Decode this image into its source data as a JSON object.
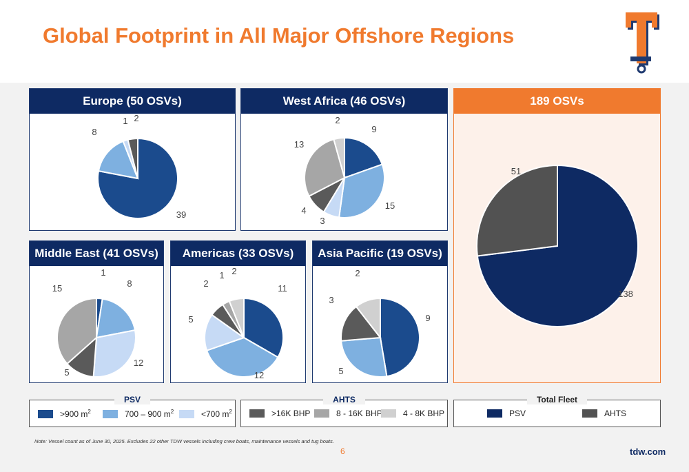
{
  "title": "Global Footprint in All Major Offshore Regions",
  "colors": {
    "psv_large": "#1b4b8d",
    "psv_mid": "#7eb0e0",
    "psv_small": "#c6daf5",
    "ahts_large": "#5a5a5a",
    "ahts_mid": "#a6a6a6",
    "ahts_small": "#d0d0d0",
    "fleet_psv": "#0e2a63",
    "fleet_ahts": "#525252",
    "accent": "#f07a2e"
  },
  "chart_data": [
    {
      "type": "pie",
      "title": "Europe (50 OSVs)",
      "categories": [
        ">900 m2",
        "700 – 900 m2",
        "<700 m2",
        ">16K BHP"
      ],
      "values": [
        39,
        8,
        1,
        2
      ]
    },
    {
      "type": "pie",
      "title": "West Africa (46 OSVs)",
      "categories": [
        ">900 m2",
        "700 – 900 m2",
        "<700 m2",
        ">16K BHP",
        "8 - 16K BHP",
        "4 - 8K BHP"
      ],
      "values": [
        9,
        15,
        3,
        4,
        13,
        2
      ]
    },
    {
      "type": "pie",
      "title": "Middle East (41 OSVs)",
      "categories": [
        ">900 m2",
        "700 – 900 m2",
        "<700 m2",
        ">16K BHP",
        "8 - 16K BHP"
      ],
      "values": [
        1,
        8,
        12,
        5,
        15
      ]
    },
    {
      "type": "pie",
      "title": "Americas (33 OSVs)",
      "categories": [
        ">900 m2",
        "700 – 900 m2",
        "<700 m2",
        ">16K BHP",
        "8 - 16K BHP",
        "4 - 8K BHP"
      ],
      "values": [
        11,
        12,
        5,
        2,
        1,
        2
      ]
    },
    {
      "type": "pie",
      "title": "Asia Pacific (19 OSVs)",
      "categories": [
        ">900 m2",
        "700 – 900 m2",
        ">16K BHP",
        "4 - 8K BHP"
      ],
      "values": [
        9,
        5,
        3,
        2
      ]
    },
    {
      "type": "pie",
      "title": "189 OSVs",
      "categories": [
        "PSV",
        "AHTS"
      ],
      "values": [
        138,
        51
      ]
    }
  ],
  "legend_psv": {
    "title": "PSV",
    "items": [
      ">900 m",
      "700 – 900 m",
      "<700 m"
    ],
    "sup": "2"
  },
  "legend_ahts": {
    "title": "AHTS",
    "items": [
      ">16K BHP",
      "8 - 16K BHP",
      "4 - 8K BHP"
    ]
  },
  "legend_fleet": {
    "title": "Total Fleet",
    "items": [
      "PSV",
      "AHTS"
    ]
  },
  "note": "Note: Vessel count as of June 30, 2025. Excludes 22 other TDW vessels including crew boats, maintenance vessels and tug boats.",
  "page_number": "6",
  "site": "tdw.com"
}
